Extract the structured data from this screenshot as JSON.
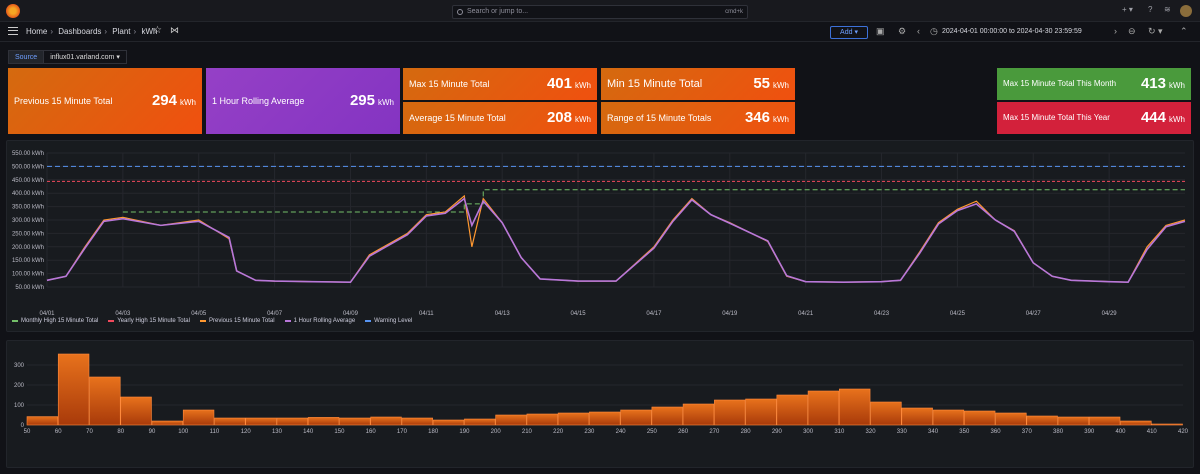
{
  "search": {
    "placeholder": "Search or jump to...",
    "shortcut": "cmd+k"
  },
  "breadcrumb": [
    "Home",
    "Dashboards",
    "Plant",
    "kWh"
  ],
  "toolbar": {
    "add_label": "Add",
    "time_range": "2024-04-01 00:00:00 to 2024-04-30 23:59:59"
  },
  "variable": {
    "label": "Source",
    "value": "influx01.varland.com"
  },
  "stats": {
    "prev15": {
      "label": "Previous 15 Minute Total",
      "value": "294",
      "unit": "kWh"
    },
    "rolling": {
      "label": "1 Hour Rolling Average",
      "value": "295",
      "unit": "kWh"
    },
    "max15": {
      "label": "Max 15 Minute Total",
      "value": "401",
      "unit": "kWh"
    },
    "min15": {
      "label": "Min 15 Minute Total",
      "value": "55",
      "unit": "kWh"
    },
    "avg15": {
      "label": "Average 15 Minute Total",
      "value": "208",
      "unit": "kWh"
    },
    "range15": {
      "label": "Range of 15 Minute Totals",
      "value": "346",
      "unit": "kWh"
    },
    "maxMonth": {
      "label": "Max 15 Minute Total This Month",
      "value": "413",
      "unit": "kWh"
    },
    "maxYear": {
      "label": "Max 15 Minute Total This Year",
      "value": "444",
      "unit": "kWh"
    }
  },
  "colors": {
    "orange": "#f0500f",
    "purple": "#8434c2",
    "green": "#4a9a3c",
    "red": "#d3213b",
    "monthly": "#73bf69",
    "yearly": "#f2495c",
    "prev": "#ff9830",
    "rolling": "#b877d9",
    "warning": "#5794f2"
  },
  "chart_data": [
    {
      "type": "line",
      "y_ticks": [
        "50.00 kWh",
        "100.00 kWh",
        "150.00 kWh",
        "200.00 kWh",
        "250.00 kWh",
        "300.00 kWh",
        "350.00 kWh",
        "400.00 kWh",
        "450.00 kWh",
        "500.00 kWh",
        "550.00 kWh"
      ],
      "ylim": [
        50,
        550
      ],
      "x_ticks": [
        "04/01",
        "04/03",
        "04/05",
        "04/07",
        "04/09",
        "04/11",
        "04/13",
        "04/15",
        "04/17",
        "04/19",
        "04/21",
        "04/23",
        "04/25",
        "04/27",
        "04/29"
      ],
      "xlim": [
        0,
        30
      ],
      "warning_level": 500,
      "yearly_high": 444,
      "monthly_high_steps": [
        [
          2,
          330
        ],
        [
          11,
          360
        ],
        [
          11.5,
          413
        ],
        [
          30,
          413
        ]
      ],
      "series": [
        {
          "name": "Previous 15 Minute Total",
          "x": [
            0,
            0.5,
            1,
            1.5,
            2,
            3,
            4,
            4.8,
            5,
            5.5,
            6,
            7,
            8,
            8.5,
            9,
            9.5,
            10,
            10.5,
            11,
            11.2,
            11.5,
            12,
            12.5,
            13,
            14,
            15,
            16,
            16.5,
            17,
            17.5,
            18,
            19,
            19.5,
            20,
            21,
            22,
            22.5,
            23,
            23.5,
            24,
            24.5,
            25,
            25.5,
            26,
            26.5,
            27,
            28,
            28.5,
            29,
            29.5,
            30
          ],
          "values": [
            75,
            90,
            200,
            300,
            310,
            280,
            300,
            230,
            110,
            75,
            72,
            70,
            68,
            170,
            210,
            250,
            320,
            330,
            390,
            200,
            380,
            290,
            160,
            80,
            72,
            72,
            200,
            300,
            380,
            320,
            290,
            220,
            90,
            70,
            68,
            70,
            75,
            180,
            290,
            340,
            370,
            300,
            260,
            140,
            90,
            75,
            70,
            68,
            200,
            280,
            300
          ]
        },
        {
          "name": "1 Hour Rolling Average",
          "x": [
            0,
            0.5,
            1,
            1.5,
            2,
            3,
            4,
            4.8,
            5,
            5.5,
            6,
            7,
            8,
            8.5,
            9,
            9.5,
            10,
            10.5,
            11,
            11.2,
            11.5,
            12,
            12.5,
            13,
            14,
            15,
            16,
            16.5,
            17,
            17.5,
            18,
            19,
            19.5,
            20,
            21,
            22,
            22.5,
            23,
            23.5,
            24,
            24.5,
            25,
            25.5,
            26,
            26.5,
            27,
            28,
            28.5,
            29,
            29.5,
            30
          ],
          "values": [
            75,
            90,
            195,
            295,
            305,
            280,
            295,
            235,
            110,
            75,
            72,
            70,
            68,
            165,
            205,
            245,
            315,
            325,
            380,
            280,
            370,
            290,
            160,
            80,
            72,
            72,
            195,
            295,
            375,
            320,
            288,
            222,
            92,
            70,
            68,
            70,
            75,
            175,
            285,
            335,
            360,
            300,
            258,
            140,
            90,
            75,
            70,
            68,
            190,
            275,
            295
          ]
        }
      ],
      "legend": [
        "Monthly High 15 Minute Total",
        "Yearly High 15 Minute Total",
        "Previous 15 Minute Total",
        "1 Hour Rolling Average",
        "Warning Level"
      ]
    },
    {
      "type": "bar",
      "y_ticks": [
        "0",
        "100",
        "200",
        "300"
      ],
      "ylim": [
        0,
        380
      ],
      "x_ticks": [
        "50",
        "60",
        "70",
        "80",
        "90",
        "100",
        "110",
        "120",
        "130",
        "140",
        "150",
        "160",
        "170",
        "180",
        "190",
        "200",
        "210",
        "220",
        "230",
        "240",
        "250",
        "260",
        "270",
        "280",
        "290",
        "300",
        "310",
        "320",
        "330",
        "340",
        "350",
        "360",
        "370",
        "380",
        "390",
        "400",
        "410",
        "420"
      ],
      "bins": [
        50,
        60,
        70,
        80,
        90,
        100,
        110,
        120,
        130,
        140,
        150,
        160,
        170,
        180,
        190,
        200,
        210,
        220,
        230,
        240,
        250,
        260,
        270,
        280,
        290,
        300,
        310,
        320,
        330,
        340,
        350,
        360,
        370,
        380,
        390,
        400,
        410
      ],
      "values": [
        42,
        355,
        240,
        140,
        20,
        75,
        35,
        35,
        35,
        38,
        35,
        40,
        35,
        25,
        30,
        50,
        55,
        60,
        65,
        75,
        90,
        105,
        125,
        130,
        150,
        170,
        180,
        115,
        85,
        75,
        70,
        60,
        45,
        40,
        40,
        20,
        5
      ]
    }
  ]
}
